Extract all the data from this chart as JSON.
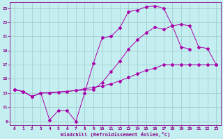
{
  "bg_color": "#c5eef0",
  "line_color": "#aa00aa",
  "grid_color": "#99cccc",
  "xlabel": "Windchill (Refroidissement éolien,°C)",
  "xlim": [
    -0.5,
    23.5
  ],
  "ylim": [
    8.5,
    25.8
  ],
  "yticks": [
    9,
    11,
    13,
    15,
    17,
    19,
    21,
    23,
    25
  ],
  "xticks": [
    0,
    1,
    2,
    3,
    4,
    5,
    6,
    7,
    8,
    9,
    10,
    11,
    12,
    13,
    14,
    15,
    16,
    17,
    18,
    19,
    20,
    21,
    22,
    23
  ],
  "curve1_x": [
    0,
    1,
    2,
    3,
    4,
    5,
    6,
    7,
    8,
    9,
    10,
    11,
    12,
    13,
    14,
    15,
    16,
    17,
    18,
    19,
    20
  ],
  "curve1_y": [
    13.5,
    13.2,
    12.5,
    13.0,
    9.2,
    10.5,
    10.5,
    9.0,
    13.0,
    17.2,
    20.8,
    21.0,
    22.2,
    24.5,
    24.7,
    25.2,
    25.3,
    25.0,
    22.5,
    19.5,
    19.2
  ],
  "curve2_x": [
    0,
    1,
    2,
    3,
    9,
    10,
    11,
    12,
    13,
    14,
    15,
    16,
    17,
    18,
    19,
    20,
    21,
    22,
    23
  ],
  "curve2_y": [
    13.5,
    13.2,
    12.5,
    13.0,
    13.5,
    14.5,
    16.0,
    17.5,
    19.2,
    20.5,
    21.5,
    22.3,
    22.0,
    22.5,
    22.7,
    22.5,
    19.5,
    19.3,
    17.0
  ],
  "curve3_x": [
    0,
    1,
    2,
    3,
    4,
    5,
    6,
    7,
    8,
    9,
    10,
    11,
    12,
    13,
    14,
    15,
    16,
    17,
    18,
    19,
    20,
    21,
    22,
    23
  ],
  "curve3_y": [
    13.5,
    13.2,
    12.5,
    13.0,
    13.0,
    13.1,
    13.2,
    13.4,
    13.6,
    13.8,
    14.0,
    14.3,
    14.7,
    15.2,
    15.7,
    16.2,
    16.5,
    17.0,
    17.0,
    17.0,
    17.0,
    17.0,
    17.0,
    17.0
  ],
  "tick_color": "#880088",
  "spine_color": "#880088",
  "xlabel_color": "#880088",
  "tick_fontsize": 4.5,
  "xlabel_fontsize": 5.0
}
